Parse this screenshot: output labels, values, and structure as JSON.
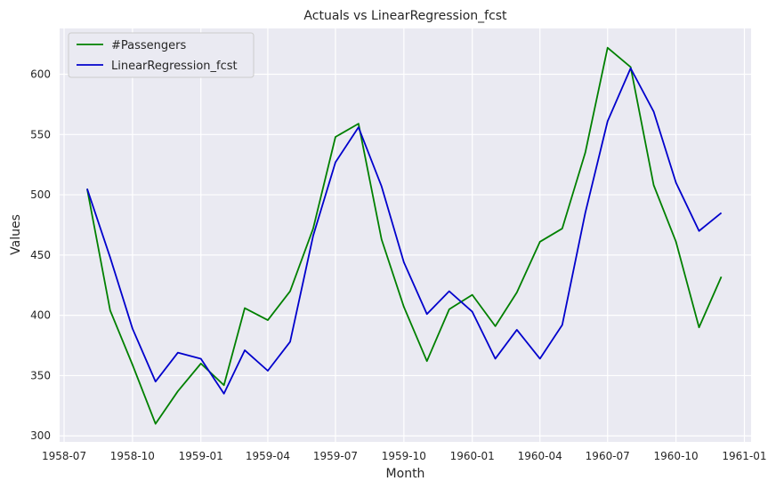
{
  "chart_data": {
    "type": "line",
    "title": "Actuals vs LinearRegression_fcst",
    "xlabel": "Month",
    "ylabel": "Values",
    "x": [
      "1958-08",
      "1958-09",
      "1958-10",
      "1958-11",
      "1958-12",
      "1959-01",
      "1959-02",
      "1959-03",
      "1959-04",
      "1959-05",
      "1959-06",
      "1959-07",
      "1959-08",
      "1959-09",
      "1959-10",
      "1959-11",
      "1959-12",
      "1960-01",
      "1960-02",
      "1960-03",
      "1960-04",
      "1960-05",
      "1960-06",
      "1960-07",
      "1960-08",
      "1960-09",
      "1960-10",
      "1960-11",
      "1960-12"
    ],
    "xlim": [
      "1958-06-25",
      "1961-01-10"
    ],
    "ylim": [
      295,
      638
    ],
    "x_ticks": [
      "1958-07",
      "1958-10",
      "1959-01",
      "1959-04",
      "1959-07",
      "1959-10",
      "1960-01",
      "1960-04",
      "1960-07",
      "1960-10",
      "1961-01"
    ],
    "y_ticks": [
      300,
      350,
      400,
      450,
      500,
      550,
      600
    ],
    "grid": true,
    "legend_position": "top-left",
    "series": [
      {
        "name": "#Passengers",
        "color": "#008000",
        "values": [
          505,
          404,
          359,
          310,
          337,
          360,
          342,
          406,
          396,
          420,
          472,
          548,
          559,
          463,
          407,
          362,
          405,
          417,
          391,
          419,
          461,
          472,
          535,
          622,
          606,
          508,
          461,
          390,
          432
        ]
      },
      {
        "name": "LinearRegression_fcst",
        "color": "#0000cc",
        "values": [
          505,
          448,
          389,
          345,
          369,
          364,
          335,
          371,
          354,
          378,
          466,
          527,
          556,
          507,
          444,
          401,
          420,
          403,
          364,
          388,
          364,
          392,
          485,
          561,
          605,
          569,
          510,
          470,
          485
        ]
      }
    ]
  }
}
